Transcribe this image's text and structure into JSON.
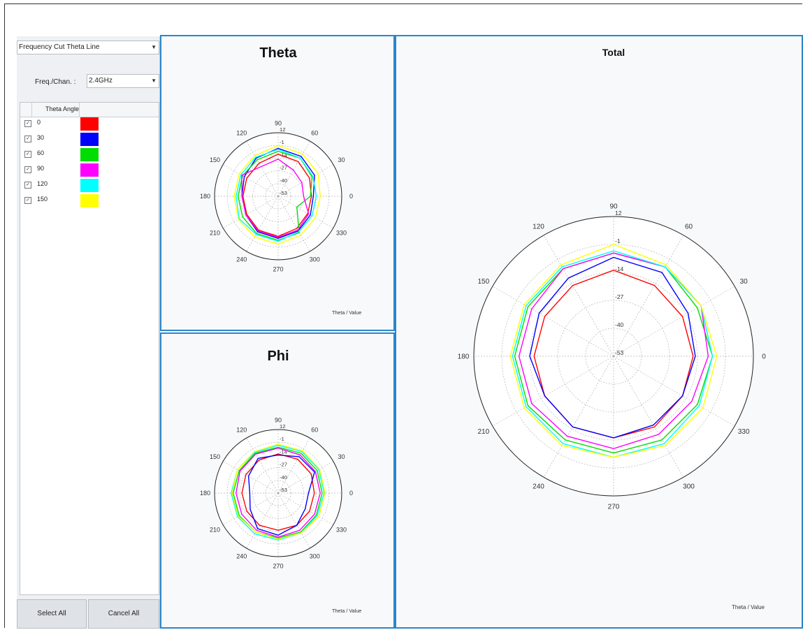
{
  "sidebar": {
    "mode_select": "Frequency Cut Theta Line",
    "freq_label": "Freq./Chan. :",
    "freq_value": "2.4GHz",
    "table_header": "Theta Angle",
    "rows": [
      {
        "value": "0",
        "color": "#ff0000"
      },
      {
        "value": "30",
        "color": "#0000ff"
      },
      {
        "value": "60",
        "color": "#00dd00"
      },
      {
        "value": "90",
        "color": "#ff00ff"
      },
      {
        "value": "120",
        "color": "#00ffff"
      },
      {
        "value": "150",
        "color": "#ffff00"
      }
    ],
    "select_all": "Select All",
    "cancel_all": "Cancel All"
  },
  "chart_data": [
    {
      "id": "theta",
      "type": "polar-line",
      "title": "Theta",
      "legend_text": "Theta / Value",
      "rlim": [
        -53,
        12
      ],
      "radial_ticks": [
        12,
        -1,
        -14,
        -27,
        -40,
        -53
      ],
      "angle_ticks": [
        0,
        30,
        60,
        90,
        120,
        150,
        180,
        210,
        240,
        270,
        300,
        330
      ],
      "angles": [
        0,
        30,
        60,
        90,
        120,
        150,
        180,
        210,
        240,
        270,
        300,
        330
      ],
      "series": [
        {
          "color": "#ff0000",
          "values": [
            -19,
            -16,
            -12,
            -10,
            -14,
            -16,
            -17,
            -16,
            -13,
            -12,
            -15,
            -18
          ]
        },
        {
          "color": "#0000ff",
          "values": [
            -17,
            -10,
            -6,
            -4,
            -8,
            -13,
            -16,
            -15,
            -11,
            -10,
            -12,
            -15
          ]
        },
        {
          "color": "#00dd00",
          "values": [
            -20,
            -13,
            -8,
            -7,
            -10,
            -11,
            -12,
            -11,
            -9,
            -8,
            -10,
            -31
          ]
        },
        {
          "color": "#ff00ff",
          "values": [
            -27,
            -25,
            -22,
            -15,
            -18,
            -10,
            -16,
            -15,
            -12,
            -11,
            -13,
            -17
          ]
        },
        {
          "color": "#00ffff",
          "values": [
            -14,
            -12,
            -8,
            -5,
            -7,
            -9,
            -10,
            -7,
            -8,
            -7,
            -11,
            -13
          ]
        },
        {
          "color": "#ffff00",
          "values": [
            -10,
            -6,
            -3,
            -1,
            -5,
            -7,
            -8,
            -6,
            -5,
            -4,
            -7,
            -9
          ]
        }
      ]
    },
    {
      "id": "phi",
      "type": "polar-line",
      "title": "Phi",
      "legend_text": "Theta / Value",
      "rlim": [
        -53,
        12
      ],
      "radial_ticks": [
        12,
        -1,
        -14,
        -27,
        -40,
        -53
      ],
      "angle_ticks": [
        0,
        30,
        60,
        90,
        120,
        150,
        180,
        210,
        240,
        270,
        300,
        330
      ],
      "angles": [
        0,
        30,
        60,
        90,
        120,
        150,
        180,
        210,
        240,
        270,
        300,
        330
      ],
      "series": [
        {
          "color": "#ff0000",
          "values": [
            -16,
            -14,
            -13,
            -13,
            -14,
            -15,
            -16,
            -16,
            -15,
            -15,
            -15,
            -16
          ]
        },
        {
          "color": "#0000ff",
          "values": [
            -22,
            -10,
            -10,
            -14,
            -12,
            -18,
            -24,
            -20,
            -11,
            -10,
            -15,
            -21
          ]
        },
        {
          "color": "#00dd00",
          "values": [
            -8,
            -7,
            -6,
            -6,
            -6,
            -7,
            -7,
            -7,
            -7,
            -7,
            -7,
            -8
          ]
        },
        {
          "color": "#ff00ff",
          "values": [
            -10,
            -9,
            -8,
            -7,
            -7,
            -8,
            -10,
            -10,
            -9,
            -8,
            -9,
            -10
          ]
        },
        {
          "color": "#00ffff",
          "values": [
            -6,
            -5,
            -4,
            -4,
            -5,
            -5,
            -5,
            -5,
            -5,
            -5,
            -6,
            -7
          ]
        },
        {
          "color": "#ffff00",
          "values": [
            -5,
            -4,
            -3,
            -3,
            -4,
            -5,
            -6,
            -6,
            -7,
            -6,
            -6,
            -5
          ]
        }
      ]
    },
    {
      "id": "total",
      "type": "polar-line",
      "title": "Total",
      "legend_text": "Theta / Value",
      "rlim": [
        -53,
        12
      ],
      "radial_ticks": [
        12,
        -1,
        -14,
        -27,
        -40,
        -53
      ],
      "angle_ticks": [
        0,
        30,
        60,
        90,
        120,
        150,
        180,
        210,
        240,
        270,
        300,
        330
      ],
      "angles": [
        0,
        30,
        60,
        90,
        120,
        150,
        180,
        210,
        240,
        270,
        300,
        330
      ],
      "series": [
        {
          "color": "#ff0000",
          "values": [
            -16,
            -16,
            -15,
            -13,
            -15,
            -16,
            -16,
            -16,
            -15,
            -15,
            -15,
            -16
          ]
        },
        {
          "color": "#0000ff",
          "values": [
            -15,
            -13,
            -8,
            -7,
            -11,
            -13,
            -14,
            -16,
            -15,
            -15,
            -16,
            -16
          ]
        },
        {
          "color": "#00dd00",
          "values": [
            -7,
            -8,
            -5,
            -5,
            -6,
            -7,
            -7,
            -7,
            -8,
            -8,
            -8,
            -8
          ]
        },
        {
          "color": "#ff00ff",
          "values": [
            -9,
            -6,
            -5,
            -5,
            -6,
            -9,
            -9,
            -9,
            -10,
            -10,
            -11,
            -11
          ]
        },
        {
          "color": "#00ffff",
          "values": [
            -7,
            -6,
            -5,
            -4,
            -5,
            -6,
            -6,
            -6,
            -6,
            -6,
            -6,
            -7
          ]
        },
        {
          "color": "#ffff00",
          "values": [
            -5,
            -6,
            -4,
            -1,
            -4,
            -5,
            -5,
            -5,
            -5,
            -6,
            -5,
            -5
          ]
        }
      ]
    }
  ]
}
